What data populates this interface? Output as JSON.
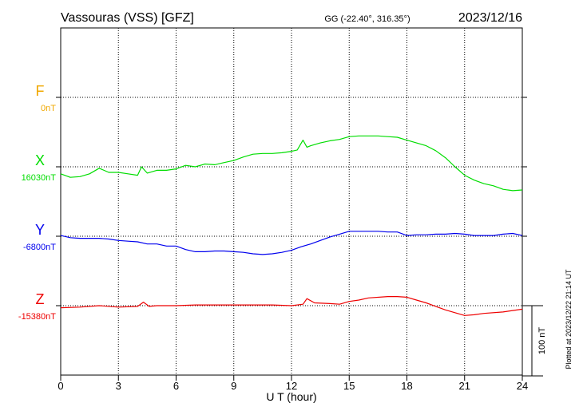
{
  "header": {
    "station": "Vassouras (VSS)  [GFZ]",
    "coords": "GG (-22.40°, 316.35°)",
    "date": "2023/12/16"
  },
  "footer": {
    "plotted": "Plotted at 2023/12/22 21:14 UT"
  },
  "scale_bar": {
    "label": "100 nT",
    "value": 100
  },
  "chart_data": {
    "type": "line",
    "xlabel": "U T (hour)",
    "xlim": [
      0,
      24
    ],
    "x_ticks": [
      0,
      3,
      6,
      9,
      12,
      15,
      18,
      21,
      24
    ],
    "x_tick_labels": [
      "0",
      "3",
      "6",
      "9",
      "12",
      "15",
      "18",
      "21",
      "24"
    ],
    "grid": true,
    "series": [
      {
        "name": "F",
        "baseline_label": "0nT",
        "color": "#f0a800",
        "x": [],
        "values": []
      },
      {
        "name": "X",
        "baseline_label": "16030nT",
        "baseline": 16030,
        "color": "#00dd00",
        "x": [
          0,
          0.5,
          1,
          1.5,
          2,
          2.5,
          3,
          3.5,
          4,
          4.2,
          4.5,
          5,
          5.5,
          6,
          6.5,
          7,
          7.5,
          8,
          8.5,
          9,
          9.5,
          10,
          10.5,
          11,
          11.5,
          12,
          12.3,
          12.6,
          12.8,
          13,
          13.5,
          14,
          14.5,
          15,
          15.5,
          16,
          16.5,
          17,
          17.5,
          18,
          18.5,
          19,
          19.5,
          20,
          20.5,
          21,
          21.5,
          22,
          22.5,
          23,
          23.5,
          24
        ],
        "values": [
          16020,
          16015,
          16016,
          16020,
          16028,
          16022,
          16022,
          16020,
          16018,
          16030,
          16021,
          16025,
          16025,
          16027,
          16032,
          16030,
          16034,
          16033,
          16036,
          16039,
          16044,
          16048,
          16049,
          16049,
          16050,
          16052,
          16054,
          16068,
          16058,
          16060,
          16064,
          16067,
          16069,
          16073,
          16074,
          16074,
          16074,
          16073,
          16072,
          16068,
          16064,
          16060,
          16053,
          16043,
          16030,
          16018,
          16011,
          16006,
          16003,
          15998,
          15996,
          15997
        ]
      },
      {
        "name": "Y",
        "baseline_label": "-6800nT",
        "baseline": -6800,
        "color": "#0000ee",
        "x": [
          0,
          0.5,
          1,
          1.5,
          2,
          2.5,
          3,
          3.5,
          4,
          4.5,
          5,
          5.5,
          6,
          6.5,
          7,
          7.5,
          8,
          8.5,
          9,
          9.5,
          10,
          10.5,
          11,
          11.5,
          12,
          12.5,
          13,
          13.5,
          14,
          14.5,
          15,
          15.5,
          16,
          16.5,
          17,
          17.5,
          18,
          18.5,
          19,
          19.5,
          20,
          20.5,
          21,
          21.5,
          22,
          22.5,
          23,
          23.5,
          24
        ],
        "values": [
          -6799,
          -6802,
          -6803,
          -6803,
          -6803,
          -6804,
          -6806,
          -6807,
          -6808,
          -6811,
          -6811,
          -6814,
          -6814,
          -6819,
          -6822,
          -6822,
          -6821,
          -6821,
          -6822,
          -6823,
          -6825,
          -6826,
          -6825,
          -6823,
          -6820,
          -6815,
          -6811,
          -6806,
          -6801,
          -6797,
          -6793,
          -6793,
          -6793,
          -6793,
          -6794,
          -6794,
          -6799,
          -6798,
          -6798,
          -6797,
          -6797,
          -6796,
          -6797,
          -6799,
          -6799,
          -6799,
          -6797,
          -6796,
          -6799
        ]
      },
      {
        "name": "Z",
        "baseline_label": "-15380nT",
        "baseline": -15380,
        "color": "#ee0000",
        "x": [
          0,
          1,
          2,
          3,
          4,
          4.3,
          4.6,
          5,
          6,
          7,
          8,
          9,
          10,
          11,
          12,
          12.6,
          12.8,
          13.2,
          14,
          14.5,
          15,
          15.5,
          16,
          17,
          17.5,
          18,
          18.5,
          19,
          19.5,
          20,
          20.5,
          21,
          21.5,
          22,
          23,
          24
        ],
        "values": [
          -15383,
          -15382,
          -15380,
          -15382,
          -15381,
          -15375,
          -15381,
          -15380,
          -15380,
          -15379,
          -15379,
          -15379,
          -15379,
          -15379,
          -15380,
          -15378,
          -15370,
          -15376,
          -15377,
          -15378,
          -15374,
          -15372,
          -15369,
          -15367,
          -15367,
          -15368,
          -15372,
          -15376,
          -15381,
          -15386,
          -15390,
          -15394,
          -15393,
          -15391,
          -15389,
          -15385
        ]
      }
    ]
  }
}
